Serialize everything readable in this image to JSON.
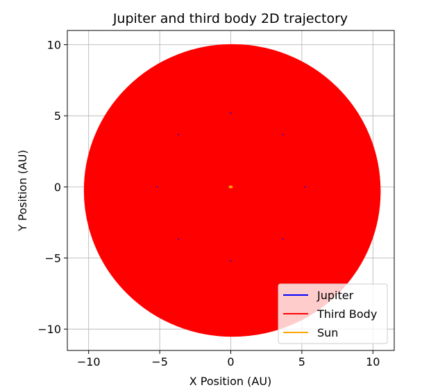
{
  "chart_data": {
    "type": "line",
    "title": "Jupiter and third body 2D trajectory",
    "xlabel": "X Position (AU)",
    "ylabel": "Y Position (AU)",
    "xlim": [
      -11.5,
      11.5
    ],
    "ylim": [
      -11.5,
      11.0
    ],
    "xticks": [
      -10,
      -5,
      0,
      5,
      10
    ],
    "yticks": [
      -10,
      -5,
      0,
      5,
      10
    ],
    "xtick_labels": [
      "−10",
      "−5",
      "0",
      "5",
      "10"
    ],
    "ytick_labels": [
      "−10",
      "−5",
      "0",
      "5",
      "10"
    ],
    "grid": true,
    "legend_position": "bottom-right",
    "series": [
      {
        "name": "Jupiter",
        "color": "#0000ff",
        "values": [
          [
            5.2,
            0.0
          ],
          [
            3.68,
            3.68
          ],
          [
            0.0,
            5.2
          ],
          [
            -3.68,
            3.68
          ],
          [
            -5.2,
            0.0
          ],
          [
            -3.68,
            -3.68
          ],
          [
            0.0,
            -5.2
          ],
          [
            3.68,
            -3.68
          ]
        ]
      },
      {
        "name": "Third Body",
        "color": "#ff0000",
        "extent": {
          "x_min": -10.3,
          "x_max": 10.5,
          "y_min": -10.5,
          "y_max": 10.0
        }
      },
      {
        "name": "Sun",
        "color": "#ffa500",
        "values": [
          [
            0.0,
            0.0
          ]
        ]
      }
    ]
  }
}
